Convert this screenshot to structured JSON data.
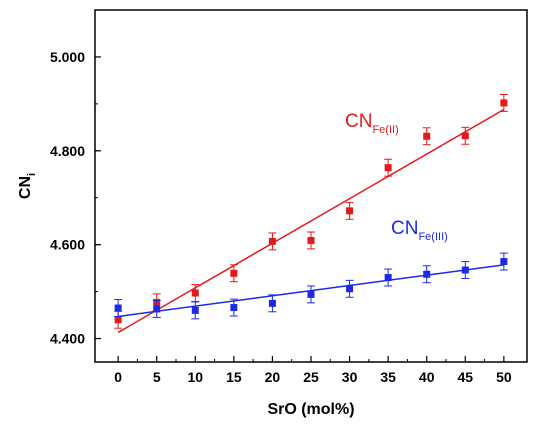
{
  "chart_data": {
    "type": "scatter",
    "xlabel": "SrO (mol%)",
    "ylabel": "CN",
    "ylabel_sub": "i",
    "xlim": [
      -3,
      53
    ],
    "ylim": [
      4.35,
      5.1
    ],
    "xticks": [
      0,
      5,
      10,
      15,
      20,
      25,
      30,
      35,
      40,
      45,
      50
    ],
    "xtick_labels": [
      "0",
      "5",
      "10",
      "15",
      "20",
      "25",
      "30",
      "35",
      "40",
      "45",
      "50"
    ],
    "yticks": [
      4.4,
      4.6,
      4.8,
      5.0
    ],
    "ytick_labels": [
      "4.400",
      "4.600",
      "4.800",
      "5.000"
    ],
    "grid": false,
    "series": [
      {
        "name": "CN",
        "name_sub": "Fe(II)",
        "color": "#e31a1c",
        "x": [
          0,
          5,
          10,
          15,
          20,
          25,
          30,
          35,
          40,
          45,
          50
        ],
        "y": [
          4.44,
          4.477,
          4.497,
          4.539,
          4.607,
          4.609,
          4.672,
          4.764,
          4.831,
          4.832,
          4.902
        ],
        "err": [
          0.018,
          0.018,
          0.018,
          0.018,
          0.018,
          0.018,
          0.018,
          0.018,
          0.018,
          0.018,
          0.018
        ],
        "fit": {
          "x0": 0,
          "y0": 4.413,
          "x1": 50,
          "y1": 4.888
        }
      },
      {
        "name": "CN",
        "name_sub": "Fe(III)",
        "color": "#1c2be3",
        "x": [
          0,
          5,
          10,
          15,
          20,
          25,
          30,
          35,
          40,
          45,
          50
        ],
        "y": [
          4.465,
          4.463,
          4.46,
          4.466,
          4.475,
          4.494,
          4.506,
          4.53,
          4.537,
          4.546,
          4.564
        ],
        "err": [
          0.018,
          0.018,
          0.018,
          0.018,
          0.018,
          0.018,
          0.018,
          0.018,
          0.018,
          0.018,
          0.018
        ],
        "fit": {
          "x0": 0,
          "y0": 4.447,
          "x1": 50,
          "y1": 4.557
        }
      }
    ]
  }
}
